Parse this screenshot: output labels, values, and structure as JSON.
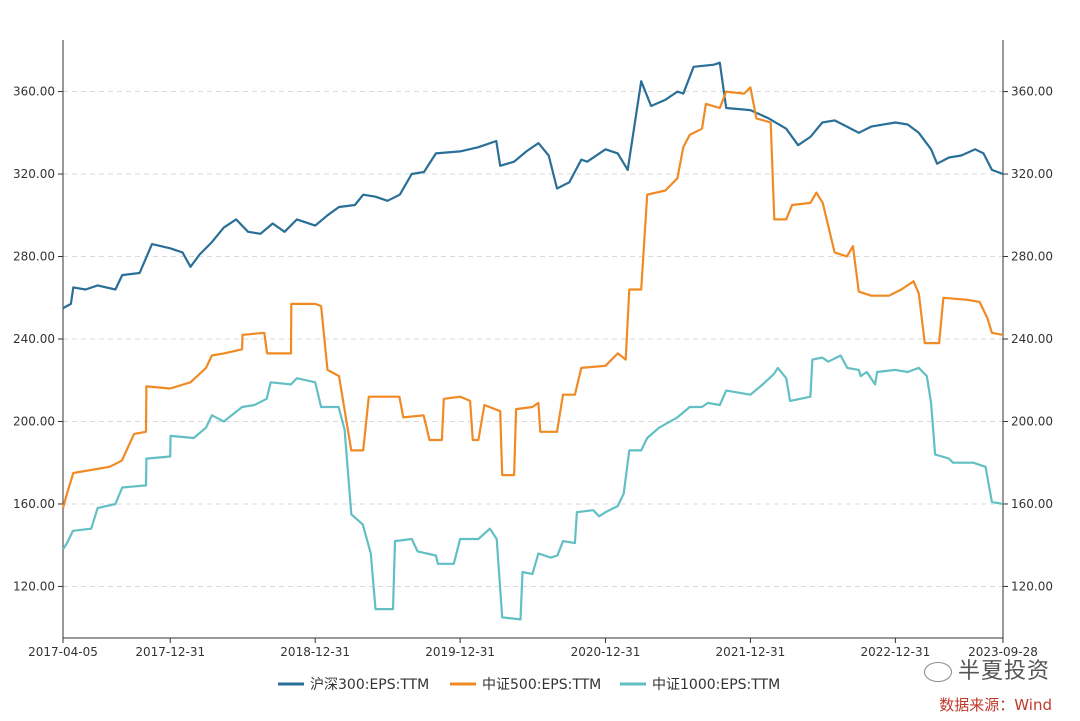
{
  "chart_data": {
    "type": "line",
    "x_ticks": [
      "2017-04-05",
      "2017-12-31",
      "2018-12-31",
      "2019-12-31",
      "2020-12-31",
      "2021-12-31",
      "2022-12-31",
      "2023-09-28"
    ],
    "y_ticks": [
      "120.00",
      "160.00",
      "200.00",
      "240.00",
      "280.00",
      "320.00",
      "360.00"
    ],
    "ylim": [
      95,
      385
    ],
    "grid": "horizontal dashed",
    "legend_position": "bottom",
    "series": [
      {
        "name": "沪深300:EPS:TTM",
        "color": "#2a6f97",
        "points": [
          [
            "2017-04-05",
            255
          ],
          [
            "2017-04-25",
            257
          ],
          [
            "2017-05-01",
            265
          ],
          [
            "2017-06-01",
            264
          ],
          [
            "2017-07-01",
            266
          ],
          [
            "2017-08-15",
            264
          ],
          [
            "2017-09-01",
            271
          ],
          [
            "2017-10-15",
            272
          ],
          [
            "2017-11-15",
            286
          ],
          [
            "2017-12-31",
            284
          ],
          [
            "2018-01-31",
            282
          ],
          [
            "2018-02-20",
            275
          ],
          [
            "2018-03-15",
            281
          ],
          [
            "2018-04-15",
            287
          ],
          [
            "2018-05-15",
            294
          ],
          [
            "2018-06-15",
            298
          ],
          [
            "2018-07-15",
            292
          ],
          [
            "2018-08-15",
            291
          ],
          [
            "2018-09-15",
            296
          ],
          [
            "2018-10-15",
            292
          ],
          [
            "2018-11-15",
            298
          ],
          [
            "2018-12-31",
            295
          ],
          [
            "2019-01-31",
            300
          ],
          [
            "2019-03-01",
            304
          ],
          [
            "2019-04-10",
            305
          ],
          [
            "2019-05-01",
            310
          ],
          [
            "2019-06-01",
            309
          ],
          [
            "2019-07-01",
            307
          ],
          [
            "2019-08-01",
            310
          ],
          [
            "2019-08-31",
            320
          ],
          [
            "2019-10-01",
            321
          ],
          [
            "2019-10-31",
            330
          ],
          [
            "2019-12-31",
            331
          ],
          [
            "2020-02-15",
            333
          ],
          [
            "2020-03-31",
            336
          ],
          [
            "2020-04-10",
            324
          ],
          [
            "2020-05-15",
            326
          ],
          [
            "2020-06-15",
            331
          ],
          [
            "2020-07-15",
            335
          ],
          [
            "2020-08-10",
            329
          ],
          [
            "2020-08-31",
            313
          ],
          [
            "2020-10-01",
            316
          ],
          [
            "2020-10-31",
            327
          ],
          [
            "2020-11-15",
            326
          ],
          [
            "2020-12-31",
            332
          ],
          [
            "2021-01-31",
            330
          ],
          [
            "2021-02-25",
            322
          ],
          [
            "2021-03-31",
            365
          ],
          [
            "2021-04-25",
            353
          ],
          [
            "2021-05-31",
            356
          ],
          [
            "2021-06-30",
            360
          ],
          [
            "2021-07-15",
            359
          ],
          [
            "2021-08-10",
            372
          ],
          [
            "2021-09-30",
            373
          ],
          [
            "2021-10-15",
            374
          ],
          [
            "2021-10-31",
            352
          ],
          [
            "2021-12-31",
            351
          ],
          [
            "2022-02-15",
            347
          ],
          [
            "2022-03-31",
            342
          ],
          [
            "2022-04-30",
            334
          ],
          [
            "2022-05-31",
            338
          ],
          [
            "2022-06-30",
            345
          ],
          [
            "2022-07-31",
            346
          ],
          [
            "2022-08-31",
            343
          ],
          [
            "2022-09-30",
            340
          ],
          [
            "2022-10-31",
            343
          ],
          [
            "2022-12-31",
            345
          ],
          [
            "2023-01-31",
            344
          ],
          [
            "2023-02-28",
            340
          ],
          [
            "2023-03-31",
            332
          ],
          [
            "2023-04-15",
            325
          ],
          [
            "2023-05-15",
            328
          ],
          [
            "2023-06-15",
            329
          ],
          [
            "2023-07-20",
            332
          ],
          [
            "2023-08-10",
            330
          ],
          [
            "2023-08-31",
            322
          ],
          [
            "2023-09-28",
            320
          ]
        ]
      },
      {
        "name": "中证500:EPS:TTM",
        "color": "#f08a24",
        "points": [
          [
            "2017-04-05",
            158
          ],
          [
            "2017-04-15",
            165
          ],
          [
            "2017-05-01",
            175
          ],
          [
            "2017-07-31",
            178
          ],
          [
            "2017-08-31",
            181
          ],
          [
            "2017-10-01",
            194
          ],
          [
            "2017-10-31",
            195
          ],
          [
            "2017-11-01",
            217
          ],
          [
            "2017-12-31",
            216
          ],
          [
            "2018-02-20",
            219
          ],
          [
            "2018-03-31",
            226
          ],
          [
            "2018-04-15",
            232
          ],
          [
            "2018-05-15",
            233
          ],
          [
            "2018-06-30",
            235
          ],
          [
            "2018-07-01",
            242
          ],
          [
            "2018-08-25",
            243
          ],
          [
            "2018-09-01",
            233
          ],
          [
            "2018-10-31",
            233
          ],
          [
            "2018-11-01",
            257
          ],
          [
            "2018-12-31",
            257
          ],
          [
            "2019-01-15",
            256
          ],
          [
            "2019-01-31",
            225
          ],
          [
            "2019-03-01",
            222
          ],
          [
            "2019-04-01",
            186
          ],
          [
            "2019-05-01",
            186
          ],
          [
            "2019-05-15",
            212
          ],
          [
            "2019-07-31",
            212
          ],
          [
            "2019-08-10",
            202
          ],
          [
            "2019-09-30",
            203
          ],
          [
            "2019-10-15",
            191
          ],
          [
            "2019-11-15",
            191
          ],
          [
            "2019-11-20",
            211
          ],
          [
            "2019-12-31",
            212
          ],
          [
            "2020-01-25",
            210
          ],
          [
            "2020-02-01",
            191
          ],
          [
            "2020-02-15",
            191
          ],
          [
            "2020-03-01",
            208
          ],
          [
            "2020-04-10",
            205
          ],
          [
            "2020-04-15",
            174
          ],
          [
            "2020-05-15",
            174
          ],
          [
            "2020-05-20",
            206
          ],
          [
            "2020-06-30",
            207
          ],
          [
            "2020-07-15",
            209
          ],
          [
            "2020-07-20",
            195
          ],
          [
            "2020-08-31",
            195
          ],
          [
            "2020-09-15",
            213
          ],
          [
            "2020-10-15",
            213
          ],
          [
            "2020-10-31",
            226
          ],
          [
            "2020-12-31",
            227
          ],
          [
            "2021-01-31",
            233
          ],
          [
            "2021-02-20",
            230
          ],
          [
            "2021-03-01",
            264
          ],
          [
            "2021-03-31",
            264
          ],
          [
            "2021-04-15",
            310
          ],
          [
            "2021-05-31",
            312
          ],
          [
            "2021-06-30",
            318
          ],
          [
            "2021-07-15",
            333
          ],
          [
            "2021-07-31",
            339
          ],
          [
            "2021-08-31",
            342
          ],
          [
            "2021-09-10",
            354
          ],
          [
            "2021-10-15",
            352
          ],
          [
            "2021-10-31",
            360
          ],
          [
            "2021-12-15",
            359
          ],
          [
            "2021-12-31",
            362
          ],
          [
            "2022-01-15",
            347
          ],
          [
            "2022-02-20",
            345
          ],
          [
            "2022-03-01",
            298
          ],
          [
            "2022-03-31",
            298
          ],
          [
            "2022-04-15",
            305
          ],
          [
            "2022-05-31",
            306
          ],
          [
            "2022-06-15",
            311
          ],
          [
            "2022-07-01",
            306
          ],
          [
            "2022-07-31",
            282
          ],
          [
            "2022-08-31",
            280
          ],
          [
            "2022-09-15",
            285
          ],
          [
            "2022-09-30",
            263
          ],
          [
            "2022-10-31",
            261
          ],
          [
            "2022-12-15",
            261
          ],
          [
            "2023-01-15",
            264
          ],
          [
            "2023-02-15",
            268
          ],
          [
            "2023-02-28",
            262
          ],
          [
            "2023-03-15",
            238
          ],
          [
            "2023-04-20",
            238
          ],
          [
            "2023-05-01",
            260
          ],
          [
            "2023-06-30",
            259
          ],
          [
            "2023-07-31",
            258
          ],
          [
            "2023-08-20",
            250
          ],
          [
            "2023-08-31",
            243
          ],
          [
            "2023-09-28",
            242
          ]
        ]
      },
      {
        "name": "中证1000:EPS:TTM",
        "color": "#62bfc4",
        "points": [
          [
            "2017-04-05",
            138
          ],
          [
            "2017-04-15",
            141
          ],
          [
            "2017-04-30",
            147
          ],
          [
            "2017-06-15",
            148
          ],
          [
            "2017-07-01",
            158
          ],
          [
            "2017-08-15",
            160
          ],
          [
            "2017-09-01",
            168
          ],
          [
            "2017-10-31",
            169
          ],
          [
            "2017-11-01",
            182
          ],
          [
            "2017-12-31",
            183
          ],
          [
            "2018-01-01",
            193
          ],
          [
            "2018-02-28",
            192
          ],
          [
            "2018-03-31",
            197
          ],
          [
            "2018-04-15",
            203
          ],
          [
            "2018-05-15",
            200
          ],
          [
            "2018-06-30",
            207
          ],
          [
            "2018-07-31",
            208
          ],
          [
            "2018-08-31",
            211
          ],
          [
            "2018-09-10",
            219
          ],
          [
            "2018-10-31",
            218
          ],
          [
            "2018-11-15",
            221
          ],
          [
            "2018-12-31",
            219
          ],
          [
            "2019-01-15",
            207
          ],
          [
            "2019-02-28",
            207
          ],
          [
            "2019-03-15",
            196
          ],
          [
            "2019-04-01",
            155
          ],
          [
            "2019-04-30",
            150
          ],
          [
            "2019-05-20",
            136
          ],
          [
            "2019-06-01",
            109
          ],
          [
            "2019-07-15",
            109
          ],
          [
            "2019-07-20",
            142
          ],
          [
            "2019-08-31",
            143
          ],
          [
            "2019-09-15",
            137
          ],
          [
            "2019-10-31",
            135
          ],
          [
            "2019-11-05",
            131
          ],
          [
            "2019-12-15",
            131
          ],
          [
            "2019-12-31",
            143
          ],
          [
            "2020-02-15",
            143
          ],
          [
            "2020-03-15",
            148
          ],
          [
            "2020-04-01",
            143
          ],
          [
            "2020-04-15",
            105
          ],
          [
            "2020-05-31",
            104
          ],
          [
            "2020-06-05",
            127
          ],
          [
            "2020-06-30",
            126
          ],
          [
            "2020-07-15",
            136
          ],
          [
            "2020-08-15",
            134
          ],
          [
            "2020-09-01",
            135
          ],
          [
            "2020-09-15",
            142
          ],
          [
            "2020-10-15",
            141
          ],
          [
            "2020-10-20",
            156
          ],
          [
            "2020-11-30",
            157
          ],
          [
            "2020-12-15",
            154
          ],
          [
            "2020-12-31",
            156
          ],
          [
            "2021-01-31",
            159
          ],
          [
            "2021-02-15",
            165
          ],
          [
            "2021-03-01",
            186
          ],
          [
            "2021-03-31",
            186
          ],
          [
            "2021-04-15",
            192
          ],
          [
            "2021-05-15",
            197
          ],
          [
            "2021-06-30",
            202
          ],
          [
            "2021-07-31",
            207
          ],
          [
            "2021-08-31",
            207
          ],
          [
            "2021-09-15",
            209
          ],
          [
            "2021-10-15",
            208
          ],
          [
            "2021-10-31",
            215
          ],
          [
            "2021-11-30",
            214
          ],
          [
            "2021-12-31",
            213
          ],
          [
            "2022-01-31",
            218
          ],
          [
            "2022-02-28",
            223
          ],
          [
            "2022-03-10",
            226
          ],
          [
            "2022-03-31",
            221
          ],
          [
            "2022-04-10",
            210
          ],
          [
            "2022-05-31",
            212
          ],
          [
            "2022-06-05",
            230
          ],
          [
            "2022-06-30",
            231
          ],
          [
            "2022-07-15",
            229
          ],
          [
            "2022-08-15",
            232
          ],
          [
            "2022-09-01",
            226
          ],
          [
            "2022-09-30",
            225
          ],
          [
            "2022-10-05",
            222
          ],
          [
            "2022-10-20",
            224
          ],
          [
            "2022-11-10",
            218
          ],
          [
            "2022-11-15",
            224
          ],
          [
            "2022-12-31",
            225
          ],
          [
            "2023-01-31",
            224
          ],
          [
            "2023-02-28",
            226
          ],
          [
            "2023-03-20",
            222
          ],
          [
            "2023-03-31",
            209
          ],
          [
            "2023-04-10",
            184
          ],
          [
            "2023-05-15",
            182
          ],
          [
            "2023-05-25",
            180
          ],
          [
            "2023-07-15",
            180
          ],
          [
            "2023-08-15",
            178
          ],
          [
            "2023-08-31",
            161
          ],
          [
            "2023-09-28",
            160
          ]
        ]
      }
    ]
  },
  "source_text": "数据来源：Wind",
  "watermark_text": "半夏投资"
}
